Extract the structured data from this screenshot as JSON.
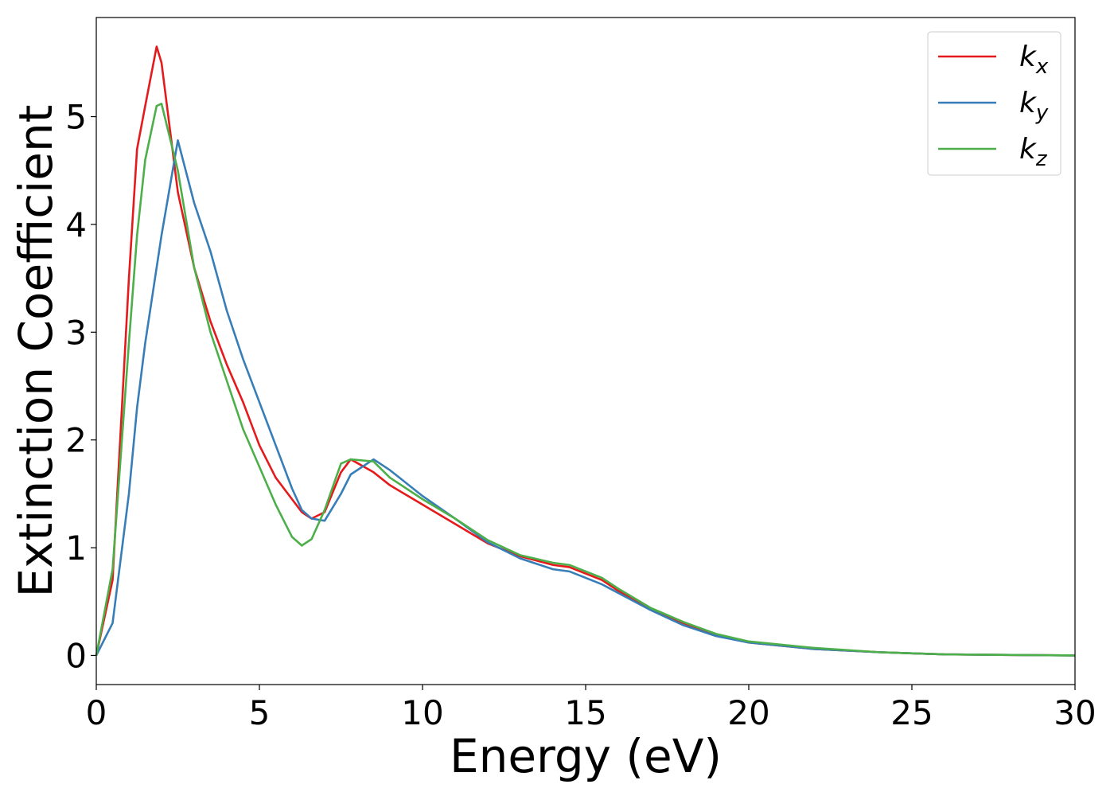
{
  "chart_data": {
    "type": "line",
    "xlabel": "Energy (eV)",
    "ylabel": "Extinction Coefficient",
    "x": [
      0,
      0.5,
      1,
      1.25,
      1.5,
      1.85,
      2,
      2.5,
      3,
      3.5,
      4,
      4.5,
      5,
      5.5,
      6,
      6.3,
      6.6,
      7,
      7.5,
      7.8,
      8.5,
      9,
      10,
      11,
      12,
      13,
      14,
      14.5,
      15,
      15.5,
      16,
      17,
      18,
      19,
      20,
      22,
      24,
      26,
      30
    ],
    "series": [
      {
        "name": "kx",
        "color": "#e41a1c",
        "values": [
          0,
          0.7,
          3.5,
          4.7,
          5.1,
          5.65,
          5.5,
          4.3,
          3.6,
          3.1,
          2.7,
          2.35,
          1.95,
          1.65,
          1.45,
          1.33,
          1.27,
          1.33,
          1.7,
          1.82,
          1.7,
          1.58,
          1.4,
          1.22,
          1.04,
          0.92,
          0.84,
          0.82,
          0.76,
          0.7,
          0.6,
          0.43,
          0.3,
          0.19,
          0.12,
          0.06,
          0.03,
          0.01,
          0
        ]
      },
      {
        "name": "ky",
        "color": "#377eb8",
        "values": [
          0,
          0.3,
          1.5,
          2.3,
          2.9,
          3.6,
          3.9,
          4.78,
          4.2,
          3.75,
          3.2,
          2.75,
          2.35,
          1.95,
          1.55,
          1.35,
          1.27,
          1.25,
          1.5,
          1.68,
          1.82,
          1.72,
          1.48,
          1.27,
          1.05,
          0.9,
          0.8,
          0.78,
          0.72,
          0.66,
          0.58,
          0.42,
          0.28,
          0.18,
          0.12,
          0.06,
          0.03,
          0.01,
          0
        ]
      },
      {
        "name": "kz",
        "color": "#4daf4a",
        "values": [
          0,
          0.8,
          2.9,
          3.9,
          4.6,
          5.1,
          5.12,
          4.5,
          3.6,
          3.0,
          2.55,
          2.1,
          1.75,
          1.4,
          1.1,
          1.02,
          1.08,
          1.35,
          1.78,
          1.82,
          1.8,
          1.65,
          1.45,
          1.27,
          1.07,
          0.93,
          0.86,
          0.84,
          0.78,
          0.72,
          0.62,
          0.44,
          0.31,
          0.2,
          0.13,
          0.07,
          0.03,
          0.01,
          0
        ]
      }
    ],
    "xlim": [
      0,
      30
    ],
    "xticks": [
      0,
      5,
      10,
      15,
      20,
      25,
      30
    ],
    "ylim": [
      -0.27,
      5.92
    ],
    "yticks": [
      0,
      1,
      2,
      3,
      4,
      5
    ],
    "legend": "upper right"
  }
}
